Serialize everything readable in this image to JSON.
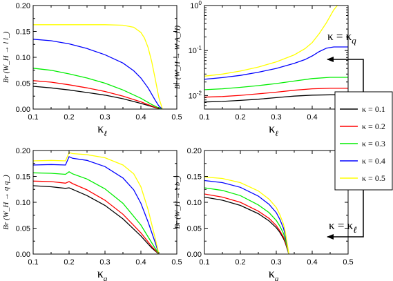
{
  "figure": {
    "legend": {
      "entries": [
        {
          "label": "κ = 0.1",
          "color": "#000000"
        },
        {
          "label": "κ = 0.2",
          "color": "#ff0000"
        },
        {
          "label": "κ = 0.3",
          "color": "#00ee00"
        },
        {
          "label": "κ = 0.4",
          "color": "#0000ff"
        },
        {
          "label": "κ = 0.5",
          "color": "#ffff00"
        }
      ]
    },
    "annotations": {
      "top_arrow": {
        "label": "κ = κ",
        "subscript": "q"
      },
      "bottom_arrow": {
        "label": "κ = κ",
        "subscript": "ℓ"
      }
    }
  },
  "chart_data": [
    {
      "type": "line",
      "ylabel": "Br (W_H → l l_)",
      "xlabel": "κ",
      "xlabel_sub": "ℓ",
      "xlim": [
        0.1,
        0.5
      ],
      "ylim": [
        0,
        0.2
      ],
      "xticks": [
        "0.1",
        "0.2",
        "0.3",
        "0.4",
        "0.5"
      ],
      "yticks": [
        "0.00",
        "0.05",
        "0.10",
        "0.15",
        "0.20"
      ],
      "yscale": "linear",
      "series": [
        {
          "color": "#000000",
          "x": [
            0.1,
            0.15,
            0.2,
            0.25,
            0.3,
            0.35,
            0.4,
            0.43,
            0.45,
            0.46
          ],
          "y": [
            0.044,
            0.041,
            0.037,
            0.032,
            0.027,
            0.02,
            0.011,
            0.005,
            0.001,
            0
          ]
        },
        {
          "color": "#ff0000",
          "x": [
            0.1,
            0.15,
            0.2,
            0.25,
            0.3,
            0.35,
            0.4,
            0.43,
            0.45,
            0.46
          ],
          "y": [
            0.055,
            0.052,
            0.047,
            0.041,
            0.034,
            0.025,
            0.014,
            0.006,
            0.001,
            0
          ]
        },
        {
          "color": "#00ee00",
          "x": [
            0.1,
            0.15,
            0.2,
            0.25,
            0.3,
            0.35,
            0.4,
            0.43,
            0.45,
            0.46
          ],
          "y": [
            0.079,
            0.075,
            0.068,
            0.06,
            0.05,
            0.037,
            0.021,
            0.009,
            0.002,
            0
          ]
        },
        {
          "color": "#0000ff",
          "x": [
            0.1,
            0.15,
            0.2,
            0.25,
            0.3,
            0.35,
            0.38,
            0.4,
            0.42,
            0.44,
            0.45,
            0.46
          ],
          "y": [
            0.135,
            0.132,
            0.126,
            0.117,
            0.105,
            0.089,
            0.074,
            0.06,
            0.041,
            0.017,
            0.006,
            0
          ]
        },
        {
          "color": "#ffff00",
          "x": [
            0.1,
            0.2,
            0.3,
            0.35,
            0.38,
            0.4,
            0.41,
            0.42,
            0.43,
            0.44,
            0.45,
            0.46
          ],
          "y": [
            0.163,
            0.163,
            0.163,
            0.162,
            0.158,
            0.148,
            0.137,
            0.119,
            0.092,
            0.058,
            0.022,
            0
          ]
        }
      ]
    },
    {
      "type": "line",
      "ylabel": "Br (W_H → W A_H)",
      "xlabel": "κ",
      "xlabel_sub": "ℓ",
      "xlim": [
        0.1,
        0.5
      ],
      "ylim": [
        0.005,
        1
      ],
      "xticks": [
        "0.1",
        "0.2",
        "0.3",
        "0.4",
        "0.5"
      ],
      "yticks": [
        "10^-2",
        "10^-1",
        "10^0"
      ],
      "yscale": "log",
      "series": [
        {
          "color": "#000000",
          "x": [
            0.1,
            0.15,
            0.2,
            0.25,
            0.3,
            0.35,
            0.4,
            0.45,
            0.5
          ],
          "y": [
            0.0072,
            0.0074,
            0.0078,
            0.0083,
            0.009,
            0.0097,
            0.0102,
            0.0104,
            0.0104
          ]
        },
        {
          "color": "#ff0000",
          "x": [
            0.1,
            0.15,
            0.2,
            0.25,
            0.3,
            0.35,
            0.4,
            0.45,
            0.5
          ],
          "y": [
            0.0092,
            0.0095,
            0.0101,
            0.0109,
            0.0119,
            0.0131,
            0.0141,
            0.0145,
            0.0145
          ]
        },
        {
          "color": "#00ee00",
          "x": [
            0.1,
            0.15,
            0.2,
            0.25,
            0.3,
            0.35,
            0.4,
            0.45,
            0.5
          ],
          "y": [
            0.0135,
            0.0141,
            0.0152,
            0.0166,
            0.0185,
            0.021,
            0.0238,
            0.0254,
            0.0254
          ]
        },
        {
          "color": "#0000ff",
          "x": [
            0.1,
            0.15,
            0.2,
            0.25,
            0.3,
            0.35,
            0.38,
            0.4,
            0.42,
            0.44,
            0.46,
            0.5
          ],
          "y": [
            0.023,
            0.025,
            0.028,
            0.033,
            0.04,
            0.052,
            0.063,
            0.076,
            0.095,
            0.113,
            0.12,
            0.12
          ]
        },
        {
          "color": "#ffff00",
          "x": [
            0.1,
            0.15,
            0.2,
            0.25,
            0.3,
            0.35,
            0.38,
            0.4,
            0.42,
            0.44,
            0.46,
            0.47
          ],
          "y": [
            0.027,
            0.03,
            0.035,
            0.043,
            0.056,
            0.08,
            0.11,
            0.15,
            0.24,
            0.42,
            0.8,
            1.0
          ]
        }
      ]
    },
    {
      "type": "line",
      "ylabel": "Br (W_H → q q_)",
      "xlabel": "κ",
      "xlabel_sub": "q",
      "xlim": [
        0.1,
        0.5
      ],
      "ylim": [
        0,
        0.2
      ],
      "xticks": [
        "0.1",
        "0.2",
        "0.3",
        "0.4",
        "0.5"
      ],
      "yticks": [
        "0.00",
        "0.05",
        "0.10",
        "0.15",
        "0.20"
      ],
      "yscale": "linear",
      "series": [
        {
          "color": "#000000",
          "x": [
            0.1,
            0.15,
            0.19,
            0.2,
            0.21,
            0.25,
            0.3,
            0.35,
            0.4,
            0.43,
            0.45
          ],
          "y": [
            0.132,
            0.13,
            0.127,
            0.128,
            0.125,
            0.113,
            0.094,
            0.068,
            0.035,
            0.012,
            0
          ]
        },
        {
          "color": "#ff0000",
          "x": [
            0.1,
            0.15,
            0.19,
            0.2,
            0.21,
            0.25,
            0.3,
            0.35,
            0.4,
            0.43,
            0.45
          ],
          "y": [
            0.141,
            0.14,
            0.137,
            0.14,
            0.136,
            0.124,
            0.104,
            0.077,
            0.041,
            0.015,
            0
          ]
        },
        {
          "color": "#00ee00",
          "x": [
            0.1,
            0.15,
            0.19,
            0.2,
            0.21,
            0.25,
            0.3,
            0.35,
            0.4,
            0.43,
            0.45
          ],
          "y": [
            0.157,
            0.156,
            0.154,
            0.159,
            0.155,
            0.145,
            0.126,
            0.098,
            0.056,
            0.022,
            0
          ]
        },
        {
          "color": "#0000ff",
          "x": [
            0.1,
            0.15,
            0.19,
            0.2,
            0.21,
            0.25,
            0.3,
            0.35,
            0.38,
            0.4,
            0.42,
            0.44,
            0.45
          ],
          "y": [
            0.172,
            0.173,
            0.172,
            0.188,
            0.185,
            0.181,
            0.169,
            0.147,
            0.124,
            0.098,
            0.062,
            0.022,
            0
          ]
        },
        {
          "color": "#ffff00",
          "x": [
            0.1,
            0.15,
            0.19,
            0.2,
            0.21,
            0.25,
            0.3,
            0.35,
            0.38,
            0.4,
            0.42,
            0.44,
            0.45
          ],
          "y": [
            0.18,
            0.181,
            0.18,
            0.196,
            0.194,
            0.192,
            0.186,
            0.172,
            0.155,
            0.13,
            0.086,
            0.03,
            0
          ]
        }
      ]
    },
    {
      "type": "line",
      "ylabel": "Br (W_H → t b_)",
      "xlabel": "κ",
      "xlabel_sub": "q",
      "xlim": [
        0.1,
        0.5
      ],
      "ylim": [
        0,
        0.2
      ],
      "xticks": [
        "0.1",
        "0.2",
        "0.3",
        "0.4",
        "0.5"
      ],
      "yticks": [
        "0.00",
        "0.05",
        "0.10",
        "0.15",
        "0.20"
      ],
      "yscale": "linear",
      "series": [
        {
          "color": "#000000",
          "x": [
            0.1,
            0.15,
            0.2,
            0.25,
            0.28,
            0.3,
            0.31,
            0.32,
            0.325,
            0.33,
            0.335
          ],
          "y": [
            0.11,
            0.104,
            0.094,
            0.078,
            0.064,
            0.051,
            0.042,
            0.03,
            0.022,
            0.011,
            0
          ]
        },
        {
          "color": "#ff0000",
          "x": [
            0.1,
            0.15,
            0.2,
            0.25,
            0.28,
            0.3,
            0.31,
            0.32,
            0.325,
            0.33,
            0.335
          ],
          "y": [
            0.116,
            0.11,
            0.1,
            0.083,
            0.069,
            0.055,
            0.045,
            0.033,
            0.024,
            0.012,
            0
          ]
        },
        {
          "color": "#00ee00",
          "x": [
            0.1,
            0.15,
            0.2,
            0.25,
            0.28,
            0.3,
            0.31,
            0.32,
            0.325,
            0.33,
            0.335
          ],
          "y": [
            0.128,
            0.123,
            0.113,
            0.095,
            0.08,
            0.065,
            0.054,
            0.04,
            0.029,
            0.015,
            0
          ]
        },
        {
          "color": "#0000ff",
          "x": [
            0.1,
            0.15,
            0.2,
            0.25,
            0.28,
            0.3,
            0.31,
            0.32,
            0.325,
            0.33,
            0.335
          ],
          "y": [
            0.142,
            0.138,
            0.129,
            0.112,
            0.096,
            0.08,
            0.067,
            0.05,
            0.037,
            0.019,
            0
          ]
        },
        {
          "color": "#ffff00",
          "x": [
            0.1,
            0.15,
            0.2,
            0.25,
            0.28,
            0.3,
            0.31,
            0.32,
            0.325,
            0.33,
            0.335
          ],
          "y": [
            0.149,
            0.146,
            0.138,
            0.122,
            0.106,
            0.09,
            0.076,
            0.058,
            0.043,
            0.022,
            0
          ]
        }
      ]
    }
  ]
}
